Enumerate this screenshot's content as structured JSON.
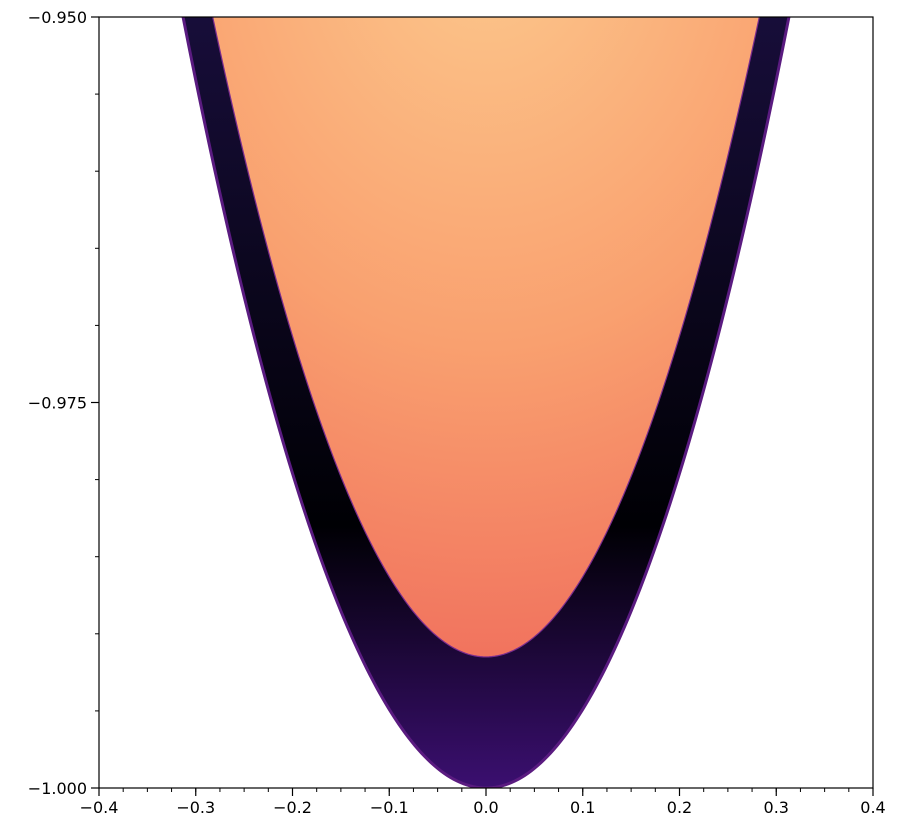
{
  "chart_data": {
    "type": "heatmap",
    "title": "",
    "xlabel": "",
    "ylabel": "",
    "xlim": [
      -0.4,
      0.4
    ],
    "ylim": [
      -1.0,
      -0.95
    ],
    "x_ticks": [
      "−0.4",
      "−0.3",
      "−0.2",
      "−0.1",
      "0.0",
      "0.1",
      "0.2",
      "0.3",
      "0.4"
    ],
    "x_tick_values": [
      -0.4,
      -0.3,
      -0.2,
      -0.1,
      0.0,
      0.1,
      0.2,
      0.3,
      0.4
    ],
    "x_minor_step": 0.025,
    "y_ticks": [
      "−1.000",
      "−0.975",
      "−0.950"
    ],
    "y_tick_values": [
      -1.0,
      -0.975,
      -0.95
    ],
    "y_minor_step": 0.005,
    "colormap": "magma",
    "regions": {
      "outer_boundary": {
        "description": "parabola y = -1 + a*x^2",
        "vertex": [
          0.0,
          -1.0
        ],
        "a": 0.51
      },
      "inner_boundary": {
        "description": "parabola y = -0.9915 + a*x^2",
        "vertex": [
          0.0,
          -0.9915
        ],
        "a": 0.52
      }
    },
    "colors": {
      "outer_band": [
        "#3b0f70",
        "#000004"
      ],
      "inner_top": "#fcc98d",
      "inner_bottom": "#f06e5c",
      "edge": "#8c2981"
    },
    "grid": false,
    "legend": "none"
  }
}
